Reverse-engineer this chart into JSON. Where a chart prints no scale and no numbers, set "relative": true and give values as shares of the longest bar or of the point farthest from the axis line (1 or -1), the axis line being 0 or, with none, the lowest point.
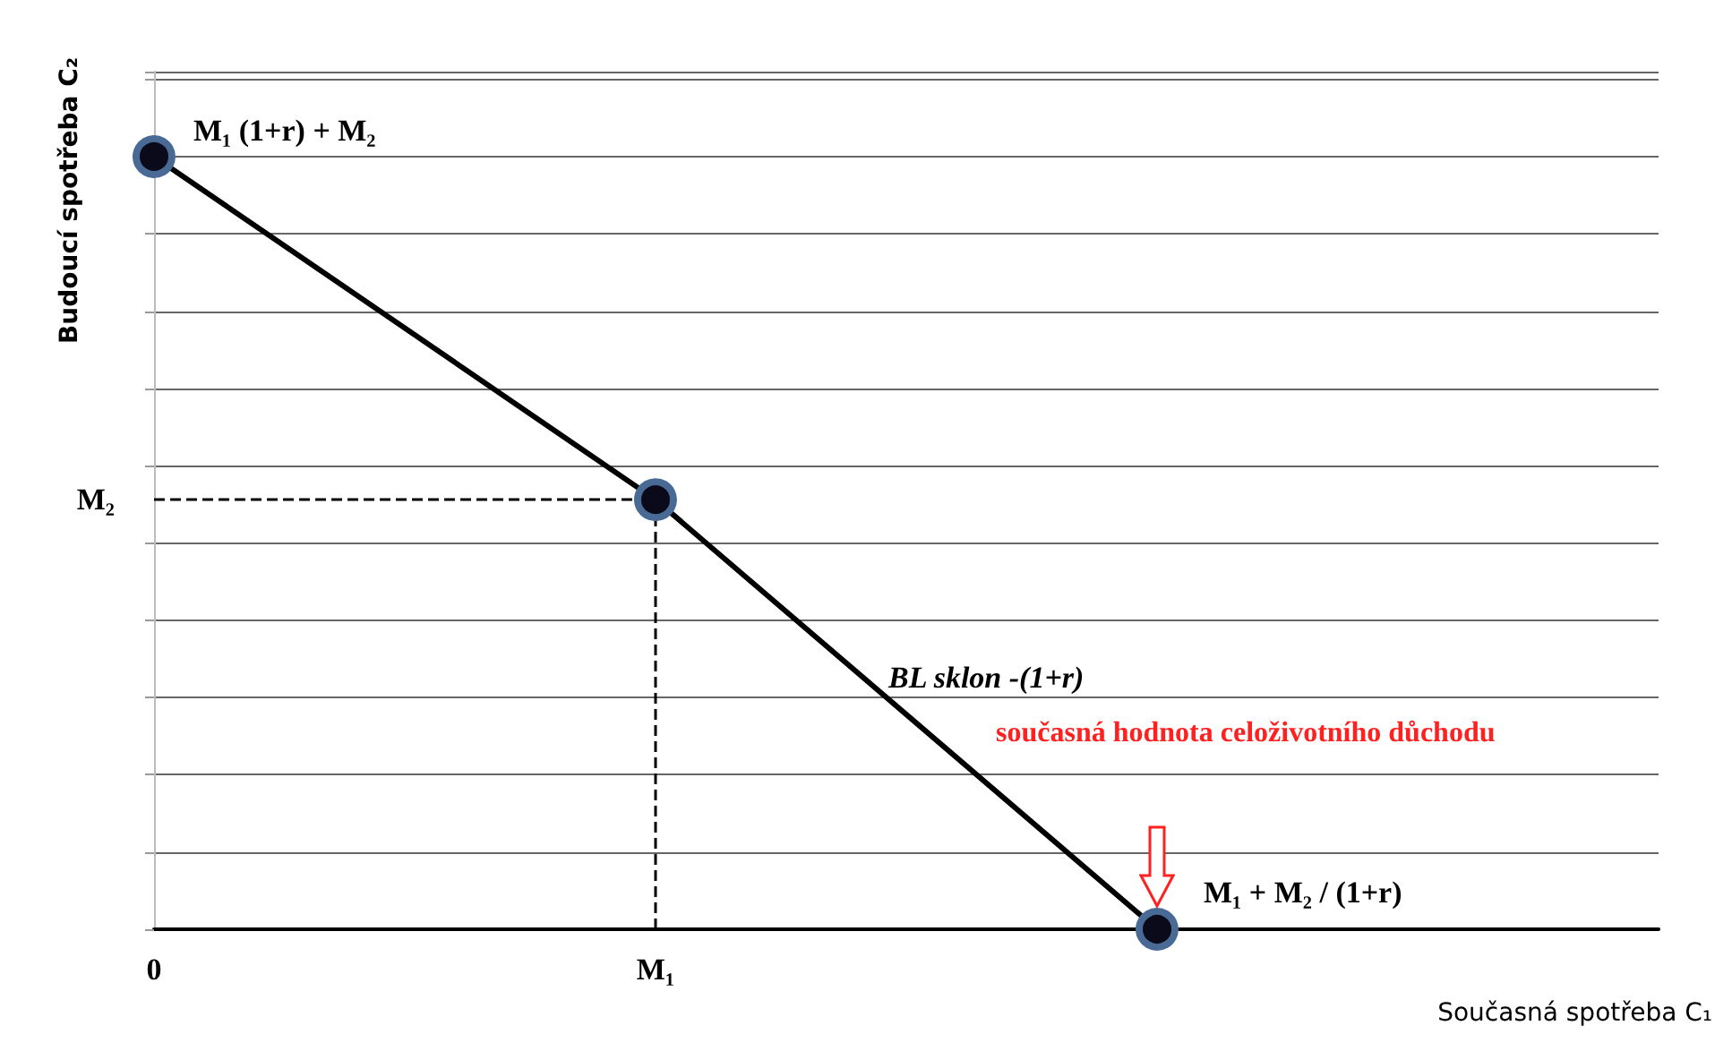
{
  "chart_data": {
    "type": "line",
    "xlabel": "Současná spotřeba C₁",
    "ylabel": "Budoucí spotřeba C₂",
    "relative": true,
    "categories": [
      "0",
      "M₁",
      null,
      null
    ],
    "grid": "y",
    "series": [
      {
        "color": "#000000",
        "values": [
          1,
          0.556,
          0,
          null
        ],
        "marker": "circle",
        "line_style": "solid"
      }
    ],
    "ref_lines": [
      {
        "axis": "y",
        "value": 0.556,
        "label": "M₂",
        "line_style": "dashed",
        "color": "#000000"
      },
      {
        "axis": "x",
        "value": "M₁",
        "line_style": "dashed",
        "color": "#000000"
      }
    ],
    "annotations": [
      "M₁ (1+r) + M₂",
      "BL sklon -(1+r)",
      "M₁ + M₂ / (1+r)",
      "současná hodnota celoživotního důchodu"
    ]
  }
}
